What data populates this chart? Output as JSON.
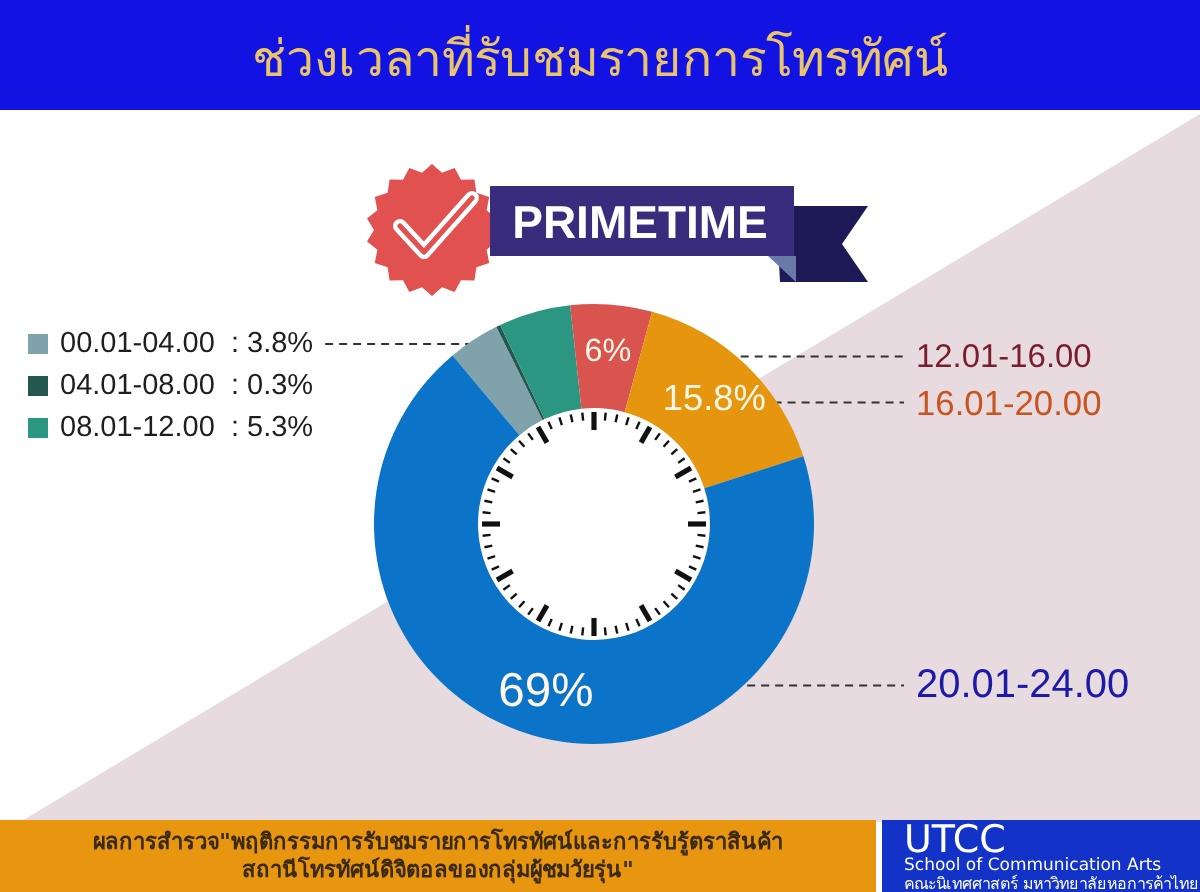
{
  "chart_data": {
    "type": "donut",
    "title": "ช่วงเวลาที่รับชมรายการโทรทัศน์",
    "subtitle": "PRIMETIME",
    "categories": [
      "00.01-04.00",
      "04.01-08.00",
      "08.01-12.00",
      "12.01-16.00",
      "16.01-20.00",
      "20.01-24.00"
    ],
    "values": [
      3.8,
      0.3,
      5.3,
      6,
      15.8,
      69
    ],
    "colors": [
      "#7fa2ab",
      "#24584f",
      "#2b9681",
      "#d9544f",
      "#e5960e",
      "#0b74c8"
    ],
    "value_labels": [
      "3.8%",
      "0.3%",
      "5.3%",
      "6%",
      "15.8%",
      "69%"
    ],
    "legend": "left",
    "annotations": [
      "ผลการสำรวจ\"พฤติกรรมการรับชมรายการโทรทัศน์และการรับรู้ตราสินค้า\nสถานีโทรทัศน์ดิจิตอลของกลุ่มผู้ชมวัยรุ่น\"",
      "UTCC",
      "School of Communication Arts",
      "คณะนิเทศศาสตร์ มหาวิทยาลัยหอการค้าไทย"
    ]
  }
}
